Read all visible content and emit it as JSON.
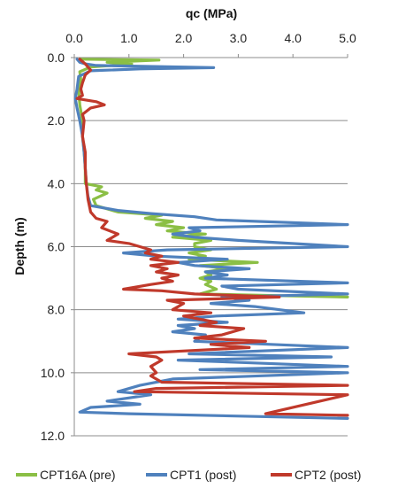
{
  "chart_data": {
    "type": "line",
    "xlabel": "qc (MPa)",
    "ylabel": "Depth (m)",
    "x_axis_position": "top",
    "y_axis_inverted": true,
    "xlim": [
      0,
      5
    ],
    "ylim": [
      0,
      12
    ],
    "x_ticks": [
      "0.0",
      "1.0",
      "2.0",
      "3.0",
      "4.0",
      "5.0"
    ],
    "y_ticks": [
      "0.0",
      "2.0",
      "4.0",
      "6.0",
      "8.0",
      "10.0",
      "12.0"
    ],
    "x_tick_values": [
      0,
      1,
      2,
      3,
      4,
      5
    ],
    "y_tick_values": [
      0,
      2,
      4,
      6,
      8,
      10,
      12
    ],
    "grid": "horizontal",
    "legend_position": "bottom",
    "series": [
      {
        "name": "CPT16A (pre)",
        "color": "#8bbf45",
        "points": [
          [
            0.1,
            0.05
          ],
          [
            1.55,
            0.08
          ],
          [
            0.6,
            0.15
          ],
          [
            1.05,
            0.2
          ],
          [
            0.3,
            0.3
          ],
          [
            0.1,
            0.45
          ],
          [
            0.12,
            0.7
          ],
          [
            0.08,
            1.0
          ],
          [
            0.1,
            1.5
          ],
          [
            0.15,
            2.0
          ],
          [
            0.15,
            2.5
          ],
          [
            0.18,
            3.0
          ],
          [
            0.2,
            3.5
          ],
          [
            0.2,
            4.0
          ],
          [
            0.5,
            4.1
          ],
          [
            0.4,
            4.2
          ],
          [
            0.6,
            4.3
          ],
          [
            0.35,
            4.5
          ],
          [
            0.4,
            4.7
          ],
          [
            0.8,
            4.9
          ],
          [
            1.6,
            5.0
          ],
          [
            1.3,
            5.1
          ],
          [
            1.8,
            5.2
          ],
          [
            1.5,
            5.3
          ],
          [
            2.0,
            5.4
          ],
          [
            1.7,
            5.5
          ],
          [
            2.4,
            5.6
          ],
          [
            1.8,
            5.7
          ],
          [
            2.5,
            5.8
          ],
          [
            2.2,
            5.9
          ],
          [
            2.2,
            6.0
          ],
          [
            2.5,
            6.1
          ],
          [
            2.1,
            6.2
          ],
          [
            2.4,
            6.3
          ],
          [
            2.1,
            6.4
          ],
          [
            3.35,
            6.5
          ],
          [
            2.3,
            6.6
          ],
          [
            2.8,
            6.7
          ],
          [
            2.4,
            6.8
          ],
          [
            2.5,
            6.9
          ],
          [
            2.3,
            7.0
          ],
          [
            2.5,
            7.1
          ],
          [
            2.4,
            7.2
          ],
          [
            2.6,
            7.35
          ],
          [
            2.3,
            7.5
          ],
          [
            5.0,
            7.6
          ]
        ]
      },
      {
        "name": "CPT1 (post)",
        "color": "#4f81bd",
        "points": [
          [
            0.05,
            0.05
          ],
          [
            0.1,
            0.15
          ],
          [
            0.2,
            0.2
          ],
          [
            0.4,
            0.25
          ],
          [
            2.55,
            0.32
          ],
          [
            1.2,
            0.36
          ],
          [
            0.3,
            0.42
          ],
          [
            0.08,
            0.6
          ],
          [
            0.05,
            1.0
          ],
          [
            0.02,
            1.3
          ],
          [
            0.05,
            1.6
          ],
          [
            0.1,
            2.0
          ],
          [
            0.15,
            2.5
          ],
          [
            0.18,
            3.0
          ],
          [
            0.2,
            3.5
          ],
          [
            0.22,
            4.0
          ],
          [
            0.25,
            4.4
          ],
          [
            0.3,
            4.7
          ],
          [
            0.8,
            4.85
          ],
          [
            1.4,
            4.95
          ],
          [
            2.2,
            5.05
          ],
          [
            2.6,
            5.15
          ],
          [
            5.0,
            5.3
          ],
          [
            2.1,
            5.4
          ],
          [
            2.3,
            5.5
          ],
          [
            1.8,
            5.6
          ],
          [
            2.2,
            5.7
          ],
          [
            3.0,
            5.8
          ],
          [
            5.0,
            6.0
          ],
          [
            1.7,
            6.1
          ],
          [
            0.9,
            6.2
          ],
          [
            1.5,
            6.3
          ],
          [
            2.8,
            6.4
          ],
          [
            1.9,
            6.5
          ],
          [
            2.2,
            6.6
          ],
          [
            3.2,
            6.7
          ],
          [
            2.4,
            6.8
          ],
          [
            2.8,
            6.9
          ],
          [
            2.4,
            7.0
          ],
          [
            5.0,
            7.15
          ],
          [
            2.7,
            7.25
          ],
          [
            3.0,
            7.35
          ],
          [
            5.0,
            7.5
          ],
          [
            2.7,
            7.6
          ],
          [
            3.2,
            7.7
          ],
          [
            2.5,
            7.8
          ],
          [
            3.3,
            7.9
          ],
          [
            4.2,
            8.1
          ],
          [
            2.6,
            8.2
          ],
          [
            1.9,
            8.3
          ],
          [
            2.8,
            8.4
          ],
          [
            1.9,
            8.5
          ],
          [
            2.2,
            8.6
          ],
          [
            1.8,
            8.7
          ],
          [
            2.4,
            8.8
          ],
          [
            2.2,
            9.0
          ],
          [
            5.0,
            9.2
          ],
          [
            2.1,
            9.4
          ],
          [
            4.7,
            9.5
          ],
          [
            1.9,
            9.6
          ],
          [
            5.0,
            9.8
          ],
          [
            2.3,
            9.9
          ],
          [
            5.0,
            10.0
          ],
          [
            1.8,
            10.2
          ],
          [
            1.2,
            10.4
          ],
          [
            0.8,
            10.6
          ],
          [
            1.4,
            10.7
          ],
          [
            0.6,
            10.9
          ],
          [
            1.2,
            11.0
          ],
          [
            0.3,
            11.1
          ],
          [
            0.1,
            11.25
          ],
          [
            1.0,
            11.3
          ],
          [
            5.0,
            11.45
          ]
        ]
      },
      {
        "name": "CPT2 (post)",
        "color": "#c0392b",
        "points": [
          [
            0.1,
            0.05
          ],
          [
            0.2,
            0.2
          ],
          [
            0.3,
            0.4
          ],
          [
            0.2,
            0.55
          ],
          [
            0.15,
            0.8
          ],
          [
            0.12,
            1.0
          ],
          [
            0.15,
            1.2
          ],
          [
            0.05,
            1.3
          ],
          [
            0.4,
            1.4
          ],
          [
            0.55,
            1.5
          ],
          [
            0.3,
            1.6
          ],
          [
            0.15,
            1.8
          ],
          [
            0.18,
            2.0
          ],
          [
            0.15,
            2.5
          ],
          [
            0.2,
            3.0
          ],
          [
            0.2,
            3.5
          ],
          [
            0.22,
            4.0
          ],
          [
            0.25,
            4.5
          ],
          [
            0.3,
            4.9
          ],
          [
            0.4,
            5.1
          ],
          [
            0.6,
            5.2
          ],
          [
            0.5,
            5.4
          ],
          [
            0.8,
            5.6
          ],
          [
            0.6,
            5.8
          ],
          [
            1.0,
            5.9
          ],
          [
            1.2,
            6.0
          ],
          [
            1.4,
            6.1
          ],
          [
            1.3,
            6.2
          ],
          [
            1.6,
            6.3
          ],
          [
            1.4,
            6.4
          ],
          [
            1.9,
            6.5
          ],
          [
            1.4,
            6.6
          ],
          [
            1.7,
            6.7
          ],
          [
            1.5,
            6.8
          ],
          [
            1.9,
            6.9
          ],
          [
            1.6,
            7.0
          ],
          [
            1.8,
            7.1
          ],
          [
            1.4,
            7.2
          ],
          [
            0.9,
            7.35
          ],
          [
            1.6,
            7.4
          ],
          [
            2.2,
            7.5
          ],
          [
            3.75,
            7.6
          ],
          [
            1.7,
            7.7
          ],
          [
            2.0,
            7.8
          ],
          [
            1.8,
            8.0
          ],
          [
            2.5,
            8.1
          ],
          [
            2.0,
            8.2
          ],
          [
            2.6,
            8.4
          ],
          [
            2.3,
            8.5
          ],
          [
            3.1,
            8.6
          ],
          [
            2.7,
            8.8
          ],
          [
            2.2,
            8.9
          ],
          [
            3.5,
            9.0
          ],
          [
            2.5,
            9.1
          ],
          [
            3.2,
            9.2
          ],
          [
            1.0,
            9.4
          ],
          [
            1.5,
            9.5
          ],
          [
            1.6,
            9.6
          ],
          [
            1.4,
            9.8
          ],
          [
            1.5,
            10.0
          ],
          [
            1.4,
            10.1
          ],
          [
            1.6,
            10.3
          ],
          [
            5.0,
            10.4
          ],
          [
            1.5,
            10.5
          ],
          [
            1.1,
            10.6
          ],
          [
            5.0,
            10.7
          ],
          [
            3.5,
            11.3
          ],
          [
            5.0,
            11.35
          ]
        ]
      }
    ]
  }
}
